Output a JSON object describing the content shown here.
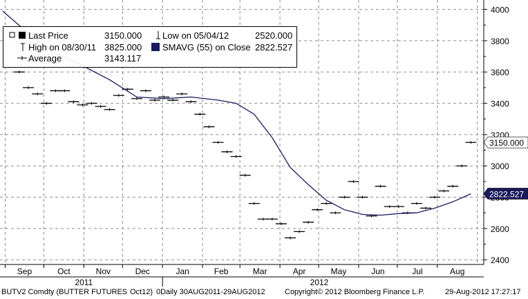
{
  "legend": {
    "last_price_label": "Last Price",
    "last_price_value": "3150.000",
    "high_label": "High on 08/30/11",
    "high_value": "3825.000",
    "average_label": "Average",
    "average_value": "3143.117",
    "low_label": "Low on 05/04/12",
    "low_value": "2520.000",
    "sma_label": "SMAVG (55) on Close",
    "sma_value": "2822.527"
  },
  "footer": {
    "ticker": "BUTV2 Comdty (BUTTER FUTURES",
    "contract": "Oct12)",
    "range": "0Daily 30AUG2011-29AUG2012",
    "copyright": "Copyright© 2012 Bloomberg Finance L.P.",
    "timestamp": "29-Aug-2012 17:27:17"
  },
  "colors": {
    "price": "#000000",
    "sma": "#1a1a5e",
    "grid": "#8c8c8c"
  },
  "chart_data": {
    "type": "line",
    "x_ticks": [
      "Sep",
      "Oct",
      "Nov",
      "Dec",
      "Jan",
      "Feb",
      "Mar",
      "Apr",
      "May",
      "Jun",
      "Jul",
      "Aug"
    ],
    "year_labels": [
      "2011",
      "2012"
    ],
    "y_ticks": [
      2400,
      2600,
      2800,
      3000,
      3200,
      3400,
      3600,
      3800,
      4000
    ],
    "ylim": [
      2370,
      4060
    ],
    "last_price_label": "3150.000",
    "sma_label": "2822.527",
    "series": [
      {
        "name": "Last Price",
        "x": [
          "2011-09-12",
          "2011-09-19",
          "2011-09-26",
          "2011-10-03",
          "2011-10-10",
          "2011-10-17",
          "2011-10-24",
          "2011-10-31",
          "2011-11-07",
          "2011-11-14",
          "2011-11-21",
          "2011-11-28",
          "2011-12-05",
          "2011-12-12",
          "2011-12-19",
          "2011-12-26",
          "2012-01-02",
          "2012-01-09",
          "2012-01-16",
          "2012-01-23",
          "2012-01-30",
          "2012-02-06",
          "2012-02-13",
          "2012-02-20",
          "2012-02-27",
          "2012-03-05",
          "2012-03-12",
          "2012-03-19",
          "2012-03-26",
          "2012-04-02",
          "2012-04-09",
          "2012-04-16",
          "2012-04-23",
          "2012-04-30",
          "2012-05-07",
          "2012-05-14",
          "2012-05-21",
          "2012-05-28",
          "2012-06-04",
          "2012-06-11",
          "2012-06-18",
          "2012-06-25",
          "2012-07-02",
          "2012-07-09",
          "2012-07-16",
          "2012-07-23",
          "2012-07-30",
          "2012-08-06",
          "2012-08-13",
          "2012-08-20",
          "2012-08-27"
        ],
        "y": [
          3600,
          3500,
          3460,
          3400,
          3480,
          3480,
          3410,
          3390,
          3400,
          3380,
          3360,
          3450,
          3490,
          3430,
          3480,
          3420,
          3440,
          3420,
          3460,
          3410,
          3330,
          3250,
          3150,
          3090,
          3060,
          2940,
          2760,
          2660,
          2660,
          2630,
          2540,
          2580,
          2640,
          2720,
          2760,
          2700,
          2800,
          2900,
          2800,
          2680,
          2870,
          2740,
          2740,
          2700,
          2760,
          2730,
          2800,
          2840,
          2870,
          3000,
          3150
        ]
      },
      {
        "name": "SMAVG (55) on Close",
        "x": [
          "2011-08-30",
          "2011-09-20",
          "2011-10-10",
          "2011-10-31",
          "2011-11-21",
          "2011-12-12",
          "2012-01-02",
          "2012-01-23",
          "2012-02-13",
          "2012-02-27",
          "2012-03-12",
          "2012-03-26",
          "2012-04-09",
          "2012-04-23",
          "2012-05-07",
          "2012-05-21",
          "2012-06-04",
          "2012-06-18",
          "2012-07-02",
          "2012-07-16",
          "2012-07-30",
          "2012-08-13",
          "2012-08-27"
        ],
        "y": [
          3990,
          3840,
          3720,
          3640,
          3550,
          3440,
          3430,
          3440,
          3420,
          3400,
          3330,
          3180,
          2990,
          2880,
          2780,
          2720,
          2690,
          2685,
          2695,
          2700,
          2730,
          2770,
          2822
        ]
      }
    ]
  }
}
